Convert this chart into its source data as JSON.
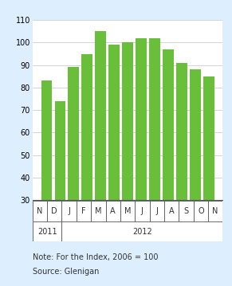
{
  "categories": [
    "N",
    "D",
    "J",
    "F",
    "M",
    "A",
    "M",
    "J",
    "J",
    "A",
    "S",
    "O",
    "N"
  ],
  "values": [
    83,
    74,
    89,
    95,
    105,
    99,
    100,
    102,
    102,
    97,
    91,
    88,
    85
  ],
  "bar_color": "#6abf3a",
  "ylim": [
    30,
    110
  ],
  "yticks": [
    30,
    40,
    50,
    60,
    70,
    80,
    90,
    100,
    110
  ],
  "note_line1": "Note: For the Index, 2006 = 100",
  "note_line2": "Source: Glenigan",
  "background_color": "#ddeeff",
  "chart_bg": "#ffffff",
  "border_color": "#6abf3a",
  "grid_color": "#cccccc",
  "tick_fontsize": 7,
  "note_fontsize": 7
}
